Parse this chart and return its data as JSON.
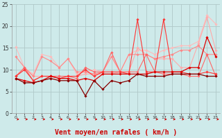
{
  "xlabel": "Vent moyen/en rafales ( km/h )",
  "x_ticks": [
    0,
    1,
    2,
    3,
    4,
    5,
    6,
    7,
    8,
    9,
    10,
    11,
    12,
    13,
    14,
    15,
    16,
    17,
    18,
    19,
    20,
    21,
    22,
    23
  ],
  "xlim": [
    -0.5,
    23.5
  ],
  "ylim": [
    0,
    25
  ],
  "y_ticks": [
    0,
    5,
    10,
    15,
    20,
    25
  ],
  "bg_color": "#ceeaea",
  "grid_color": "#b0c8c8",
  "xlabel_color": "#cc0000",
  "xlabel_fontsize": 7,
  "series": [
    {
      "y": [
        15.2,
        10.4,
        9.0,
        13.5,
        13.0,
        10.5,
        12.5,
        9.0,
        9.5,
        10.0,
        9.5,
        13.0,
        9.5,
        13.5,
        14.5,
        14.5,
        13.5,
        14.5,
        15.0,
        15.5,
        15.5,
        16.5,
        22.5,
        20.5
      ],
      "color": "#ffbbbb",
      "linewidth": 0.8,
      "marker": "D",
      "markersize": 1.8
    },
    {
      "y": [
        8.5,
        10.5,
        8.5,
        8.5,
        8.5,
        8.5,
        8.5,
        8.5,
        9.0,
        9.0,
        9.0,
        9.0,
        9.5,
        9.5,
        15.0,
        13.5,
        12.5,
        12.5,
        12.5,
        10.5,
        10.5,
        16.0,
        22.0,
        14.5
      ],
      "color": "#ffaaaa",
      "linewidth": 0.8,
      "marker": "D",
      "markersize": 1.8
    },
    {
      "y": [
        13.0,
        10.5,
        8.5,
        13.0,
        12.0,
        10.5,
        12.5,
        9.5,
        9.5,
        9.0,
        9.5,
        13.0,
        9.5,
        13.5,
        13.5,
        13.5,
        12.5,
        13.0,
        13.5,
        14.5,
        14.5,
        15.5,
        13.5,
        13.5
      ],
      "color": "#ff8888",
      "linewidth": 0.8,
      "marker": "D",
      "markersize": 1.8
    },
    {
      "y": [
        8.5,
        10.5,
        7.5,
        8.5,
        8.5,
        8.5,
        8.5,
        8.0,
        10.5,
        9.5,
        9.5,
        14.0,
        9.5,
        9.5,
        9.5,
        13.5,
        9.5,
        9.0,
        9.0,
        9.0,
        8.5,
        8.5,
        13.5,
        8.5
      ],
      "color": "#ff6666",
      "linewidth": 0.8,
      "marker": "D",
      "markersize": 1.8
    },
    {
      "y": [
        8.5,
        10.0,
        7.5,
        8.5,
        8.5,
        8.0,
        8.5,
        8.5,
        10.0,
        8.5,
        9.5,
        9.5,
        9.5,
        9.0,
        21.5,
        9.5,
        9.5,
        21.5,
        9.5,
        9.5,
        9.0,
        9.0,
        9.5,
        9.0
      ],
      "color": "#ff3333",
      "linewidth": 0.8,
      "marker": "D",
      "markersize": 1.8
    },
    {
      "y": [
        8.0,
        7.5,
        7.0,
        7.5,
        8.5,
        8.0,
        8.0,
        7.5,
        8.0,
        7.5,
        9.0,
        9.0,
        9.0,
        9.0,
        9.0,
        9.0,
        9.5,
        9.5,
        9.5,
        9.5,
        10.5,
        10.5,
        17.5,
        13.0
      ],
      "color": "#dd0000",
      "linewidth": 0.9,
      "marker": "D",
      "markersize": 1.8
    },
    {
      "y": [
        8.0,
        7.0,
        7.0,
        7.5,
        8.0,
        7.5,
        7.5,
        7.5,
        4.0,
        7.5,
        5.5,
        7.5,
        7.0,
        7.5,
        9.0,
        8.5,
        8.5,
        8.5,
        9.0,
        9.0,
        9.0,
        9.0,
        8.5,
        8.5
      ],
      "color": "#880000",
      "linewidth": 0.9,
      "marker": "D",
      "markersize": 1.8
    }
  ],
  "arrow_color": "#cc0000"
}
